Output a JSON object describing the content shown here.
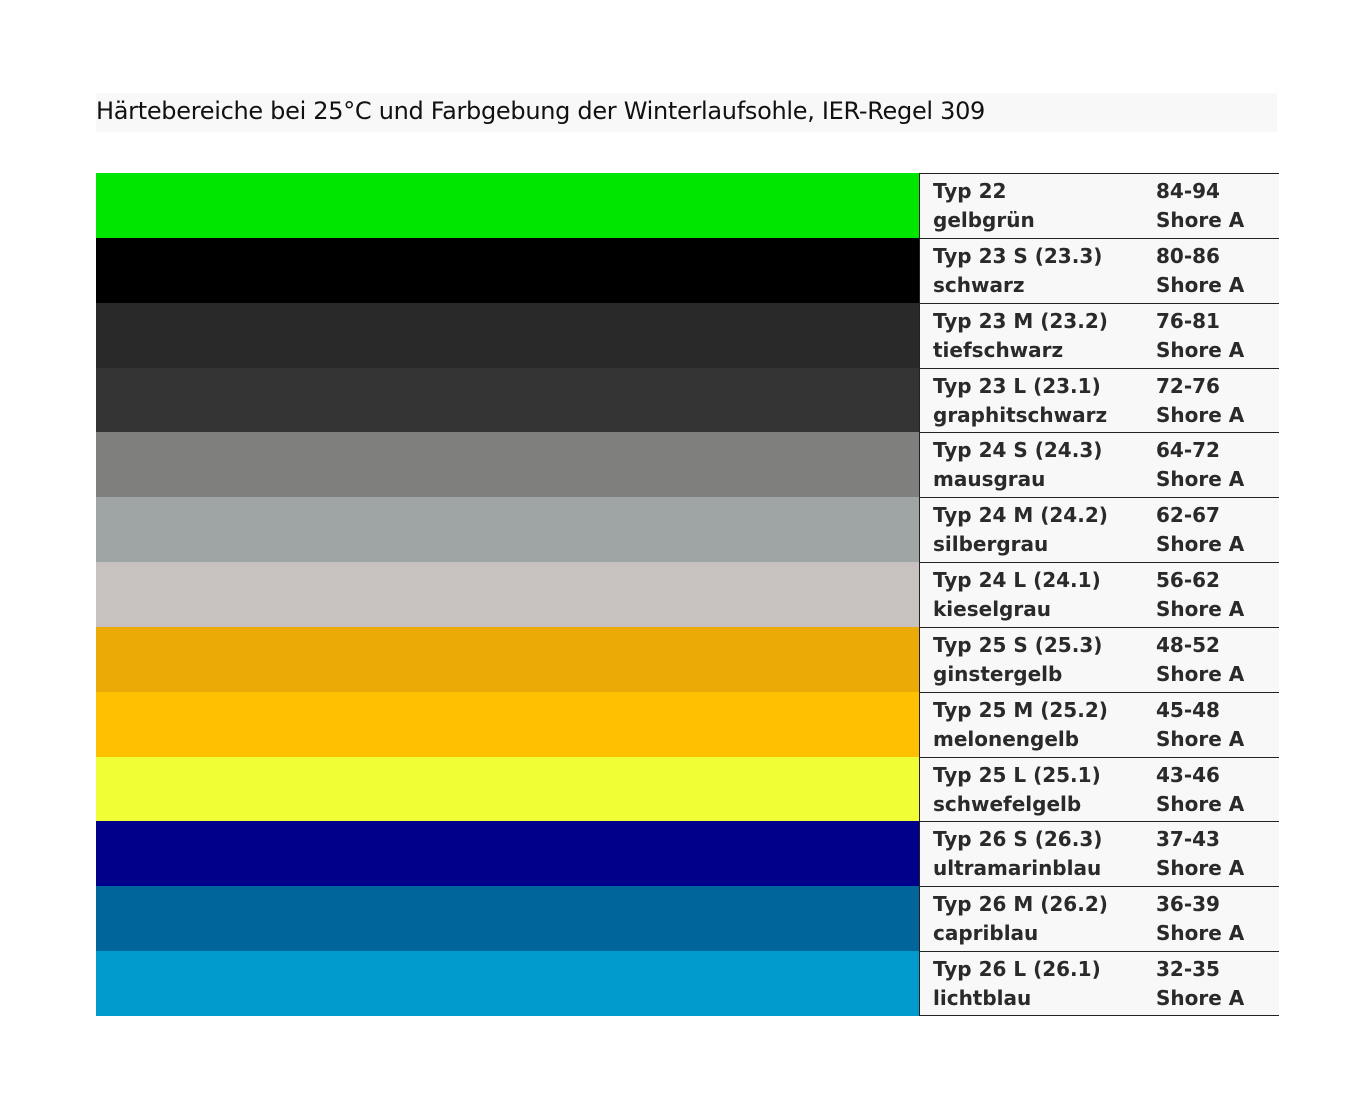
{
  "title": "Härtebereiche bei 25°C und Farbgebung der Winterlaufsohle, IER-Regel 309",
  "rows": [
    {
      "type": "Typ 22",
      "color_name": "gelbgrün",
      "hardness": "84-94",
      "unit": "Shore A",
      "color": "#00e600"
    },
    {
      "type": "Typ 23 S (23.3)",
      "color_name": "schwarz",
      "hardness": "80-86",
      "unit": "Shore A",
      "color": "#000000"
    },
    {
      "type": "Typ 23 M (23.2)",
      "color_name": "tiefschwarz",
      "hardness": "76-81",
      "unit": "Shore A",
      "color": "#292929"
    },
    {
      "type": "Typ 23 L (23.1)",
      "color_name": "graphitschwarz",
      "hardness": "72-76",
      "unit": "Shore A",
      "color": "#343434"
    },
    {
      "type": "Typ 24 S (24.3)",
      "color_name": "mausgrau",
      "hardness": "64-72",
      "unit": "Shore A",
      "color": "#7f807e"
    },
    {
      "type": "Typ 24 M (24.2)",
      "color_name": "silbergrau",
      "hardness": "62-67",
      "unit": "Shore A",
      "color": "#9ea5a4"
    },
    {
      "type": "Typ 24 L (24.1)",
      "color_name": "kieselgrau",
      "hardness": "56-62",
      "unit": "Shore A",
      "color": "#c7c1c0"
    },
    {
      "type": "Typ 25 S (25.3)",
      "color_name": "ginstergelb",
      "hardness": "48-52",
      "unit": "Shore A",
      "color": "#ebaa05"
    },
    {
      "type": "Typ 25 M (25.2)",
      "color_name": "melonengelb",
      "hardness": "45-48",
      "unit": "Shore A",
      "color": "#fec000"
    },
    {
      "type": "Typ 25 L (25.1)",
      "color_name": "schwefelgelb",
      "hardness": "43-46",
      "unit": "Shore A",
      "color": "#f0ff35"
    },
    {
      "type": "Typ 26 S (26.3)",
      "color_name": "ultramarinblau",
      "hardness": "37-43",
      "unit": "Shore A",
      "color": "#00008a"
    },
    {
      "type": "Typ 26 M (26.2)",
      "color_name": "capriblau",
      "hardness": "36-39",
      "unit": "Shore A",
      "color": "#00659a"
    },
    {
      "type": "Typ 26 L (26.1)",
      "color_name": "lichtblau",
      "hardness": "32-35",
      "unit": "Shore A",
      "color": "#009acc"
    }
  ]
}
